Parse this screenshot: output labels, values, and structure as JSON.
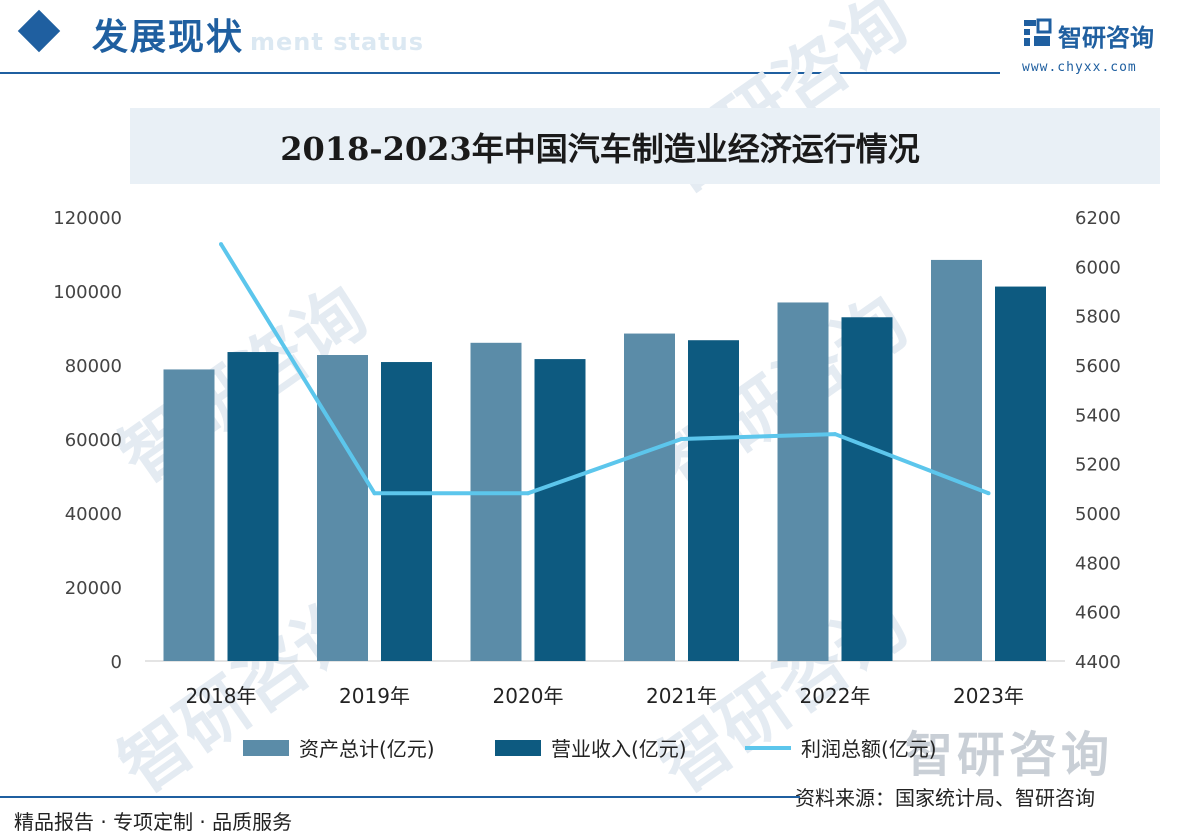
{
  "header": {
    "section_title": "发展现状",
    "section_subtitle": "ment status",
    "brand_name": "智研咨询",
    "brand_url": "www.chyxx.com"
  },
  "watermark_text": "智研咨询",
  "colors": {
    "brand": "#1f5fa0",
    "assets": "#5b8ca8",
    "revenue": "#0d5a80",
    "profit": "#5cc6ec"
  },
  "chart_data": {
    "type": "bar",
    "title": "2018-2023年中国汽车制造业经济运行情况",
    "categories": [
      "2018年",
      "2019年",
      "2020年",
      "2021年",
      "2022年",
      "2023年"
    ],
    "series": [
      {
        "name": "资产总计(亿元)",
        "type": "bar",
        "axis": "left",
        "values": [
          78800,
          82700,
          86000,
          88500,
          96900,
          108400
        ]
      },
      {
        "name": "营业收入(亿元)",
        "type": "bar",
        "axis": "left",
        "values": [
          83500,
          80800,
          81600,
          86700,
          92900,
          101200
        ]
      },
      {
        "name": "利润总额(亿元)",
        "type": "line",
        "axis": "right",
        "values": [
          6090,
          5080,
          5080,
          5300,
          5320,
          5080
        ]
      }
    ],
    "y_left": {
      "range": [
        0,
        120000
      ],
      "ticks": [
        "0",
        "20000",
        "40000",
        "60000",
        "80000",
        "100000",
        "120000"
      ]
    },
    "y_right": {
      "range": [
        4400,
        6200
      ],
      "ticks": [
        "4400",
        "4600",
        "4800",
        "5000",
        "5200",
        "5400",
        "5600",
        "5800",
        "6000",
        "6200"
      ]
    },
    "grid": false,
    "legend": "bottom"
  },
  "source": "资料来源：国家统计局、智研咨询",
  "footer": "精品报告 · 专项定制 · 品质服务"
}
